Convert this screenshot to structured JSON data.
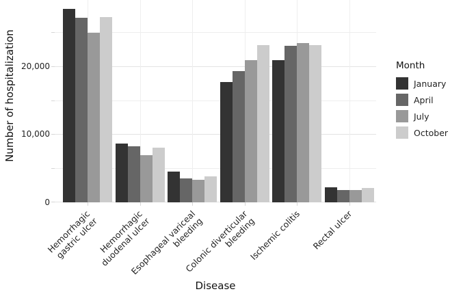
{
  "chart_data": {
    "type": "bar",
    "title": "",
    "xlabel": "Disease",
    "ylabel": "Number of hospitalization",
    "legend_title": "Month",
    "legend_position": "right",
    "grid_on": true,
    "categories": [
      "Hemorrhagic gastric ulcer",
      "Hemorrhagic duodenal ulcer",
      "Esophageal variceal bleeding",
      "Colonic diverticular bleeding",
      "Ischemic colitis",
      "Rectal ulcer"
    ],
    "category_label_lines": [
      [
        "Hemorrhagic",
        "gastric ulcer"
      ],
      [
        "Hemorrhagic",
        "duodenal ulcer"
      ],
      [
        "Esophageal variceal",
        "bleeding"
      ],
      [
        "Colonic diverticular",
        "bleeding"
      ],
      [
        "Ischemic colitis"
      ],
      [
        "Rectal ulcer"
      ]
    ],
    "series": [
      {
        "name": "January",
        "color": "#333333",
        "values": [
          28400,
          8600,
          4500,
          17700,
          20900,
          2200
        ]
      },
      {
        "name": "April",
        "color": "#666666",
        "values": [
          27100,
          8200,
          3500,
          19300,
          23000,
          1800
        ]
      },
      {
        "name": "July",
        "color": "#999999",
        "values": [
          24900,
          6900,
          3300,
          20900,
          23400,
          1800
        ]
      },
      {
        "name": "October",
        "color": "#cccccc",
        "values": [
          27200,
          8000,
          3800,
          23100,
          23100,
          2100
        ]
      }
    ],
    "ylim": [
      0,
      29700
    ],
    "yticks": [
      {
        "value": 0,
        "label": "0"
      },
      {
        "value": 10000,
        "label": "10,000"
      },
      {
        "value": 20000,
        "label": "20,000"
      }
    ],
    "grid_values": {
      "major": [
        0,
        10000,
        20000
      ],
      "minor": [
        5000,
        15000,
        25000
      ]
    }
  },
  "colors": {
    "background": "#ffffff",
    "grid_major": "#e3e3e3",
    "grid_minor": "#eeeeee",
    "tick_mark": "#d6d6d6",
    "text": "#1f1f1f"
  }
}
